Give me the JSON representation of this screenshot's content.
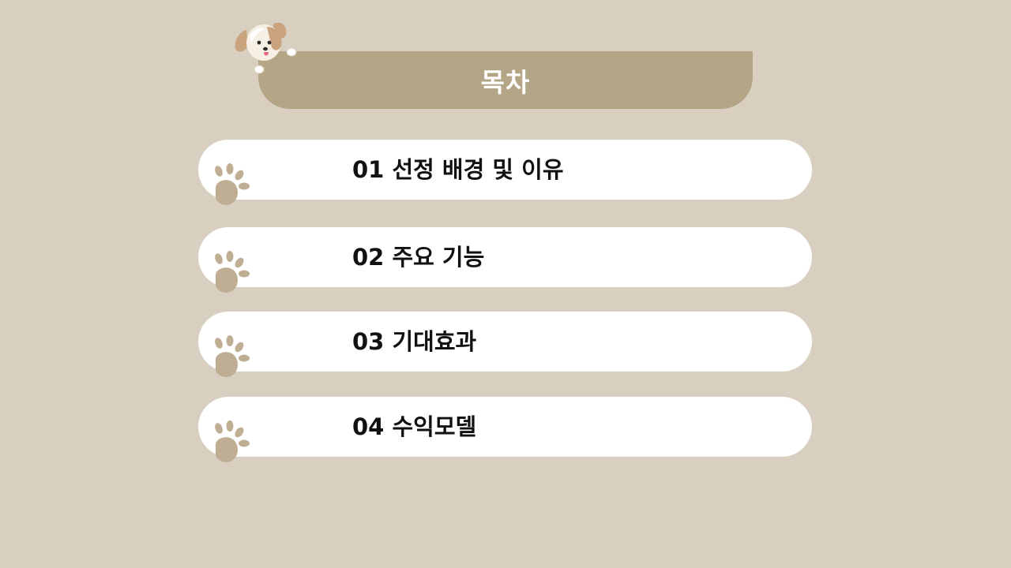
{
  "slide": {
    "title": "목차",
    "accent_color": "#b4a586",
    "background_color": "#d8cfc0",
    "items": [
      {
        "label": "01 선정 배경 및 이유",
        "icon": "paw-icon"
      },
      {
        "label": "02 주요 기능",
        "icon": "paw-icon"
      },
      {
        "label": "03 기대효과",
        "icon": "paw-icon"
      },
      {
        "label": "04 수익모델",
        "icon": "paw-icon"
      }
    ],
    "mascot_icon": "dog-icon"
  }
}
